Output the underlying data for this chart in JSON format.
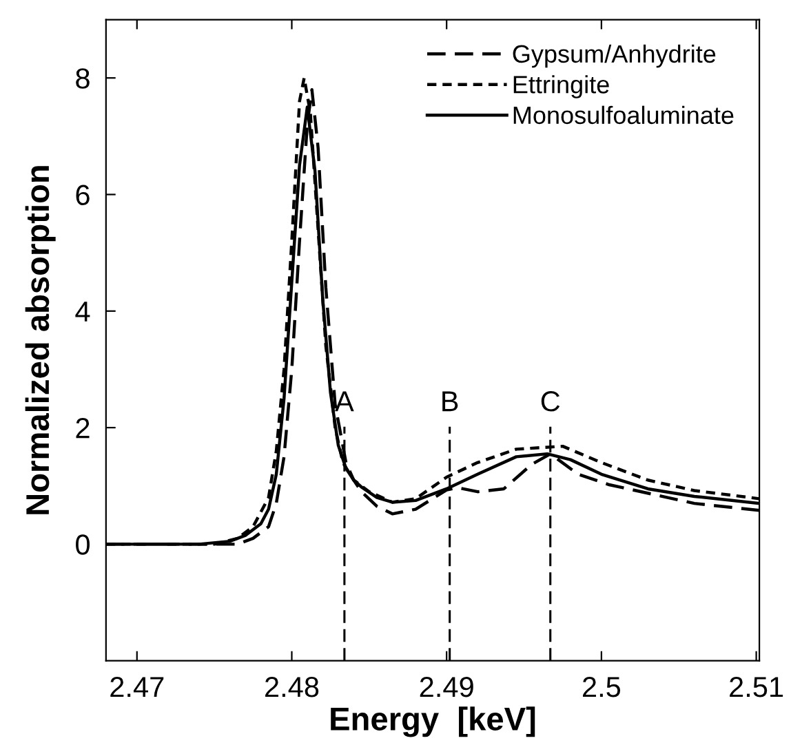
{
  "chart_data": {
    "type": "line",
    "xlabel": "Energy  [keV]",
    "ylabel": "Normalized absorption",
    "xlim": [
      2.468,
      2.5102
    ],
    "ylim": [
      -2,
      9
    ],
    "xticks": [
      2.47,
      2.48,
      2.49,
      {
        "value": 2.5,
        "label": "2.5"
      },
      2.51
    ],
    "yticks": [
      0,
      2,
      4,
      6,
      8
    ],
    "grid": false,
    "legend": "top right",
    "marker": "none",
    "series": [
      {
        "name": "Gypsum/Anhydrite",
        "color": "#000000",
        "line_style": "dashed",
        "x": [
          2.468,
          2.4765,
          2.4775,
          2.4785,
          2.479,
          2.4795,
          2.48,
          2.4805,
          2.481,
          2.4813,
          2.4817,
          2.4822,
          2.4828,
          2.4835,
          2.484,
          2.4845,
          2.4855,
          2.4865,
          2.488,
          2.49,
          2.4907,
          2.492,
          2.4937,
          2.4955,
          2.4967,
          2.4985,
          2.5005,
          2.506,
          2.5102
        ],
        "values": [
          0,
          0,
          0.1,
          0.3,
          0.7,
          1.5,
          3.0,
          5.2,
          7.2,
          7.8,
          6.8,
          4.4,
          2.4,
          1.4,
          1.1,
          0.9,
          0.65,
          0.52,
          0.6,
          0.93,
          0.97,
          0.9,
          0.95,
          1.37,
          1.55,
          1.2,
          1.02,
          0.7,
          0.58
        ]
      },
      {
        "name": "Ettringite",
        "color": "#000000",
        "line_style": "dotted",
        "x": [
          2.468,
          2.475,
          2.4765,
          2.4775,
          2.4785,
          2.479,
          2.4795,
          2.48,
          2.4805,
          2.4808,
          2.4812,
          2.4817,
          2.4822,
          2.4828,
          2.4833,
          2.484,
          2.485,
          2.4865,
          2.488,
          2.49,
          2.492,
          2.4945,
          2.4975,
          2.5,
          2.503,
          2.506,
          2.5102
        ],
        "values": [
          0,
          0,
          0.1,
          0.3,
          0.8,
          1.6,
          3.0,
          5.2,
          7.6,
          8.0,
          7.4,
          5.4,
          3.4,
          2.0,
          1.4,
          1.1,
          0.9,
          0.72,
          0.78,
          1.15,
          1.4,
          1.63,
          1.68,
          1.4,
          1.1,
          0.92,
          0.78
        ]
      },
      {
        "name": "Monosulfoaluminate",
        "color": "#000000",
        "line_style": "solid",
        "x": [
          2.468,
          2.474,
          2.476,
          2.477,
          2.478,
          2.4785,
          2.479,
          2.4795,
          2.48,
          2.4805,
          2.481,
          2.4815,
          2.482,
          2.4825,
          2.483,
          2.4835,
          2.484,
          2.4845,
          2.4855,
          2.4865,
          2.488,
          2.49,
          2.492,
          2.4945,
          2.4965,
          2.498,
          2.5,
          2.503,
          2.506,
          2.5102
        ],
        "values": [
          0,
          0,
          0.05,
          0.15,
          0.35,
          0.6,
          1.2,
          2.5,
          4.5,
          6.5,
          7.5,
          6.4,
          4.2,
          2.6,
          1.7,
          1.3,
          1.1,
          0.98,
          0.8,
          0.72,
          0.75,
          0.95,
          1.2,
          1.5,
          1.55,
          1.45,
          1.2,
          0.95,
          0.82,
          0.7
        ]
      }
    ],
    "ref_lines": [
      {
        "axis": "x",
        "value": 2.4834,
        "label": "A",
        "color": "#000000",
        "line_style": "dashed"
      },
      {
        "axis": "x",
        "value": 2.4902,
        "label": "B",
        "color": "#000000",
        "line_style": "dashed"
      },
      {
        "axis": "x",
        "value": 2.4967,
        "label": "C",
        "color": "#000000",
        "line_style": "dashed"
      }
    ]
  }
}
